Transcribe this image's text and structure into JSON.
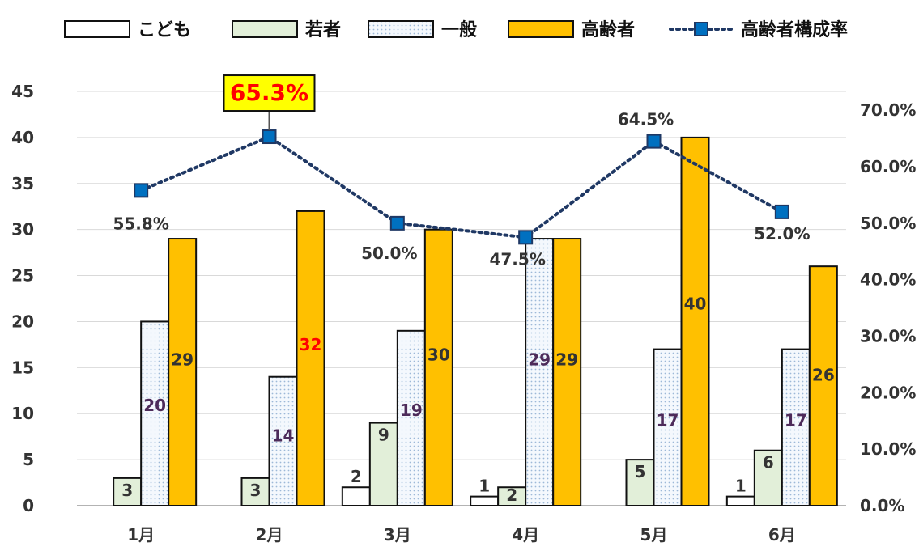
{
  "chart_data": {
    "type": "bar",
    "categories": [
      "1月",
      "2月",
      "3月",
      "4月",
      "5月",
      "6月"
    ],
    "series": [
      {
        "name": "こども",
        "values": [
          0,
          0,
          2,
          1,
          0,
          1
        ],
        "labels": [
          "",
          "",
          "2",
          "1",
          "",
          "1"
        ],
        "color": "#ffffff"
      },
      {
        "name": "若者",
        "values": [
          3,
          3,
          9,
          2,
          5,
          6
        ],
        "labels": [
          "3",
          "3",
          "9",
          "2",
          "5",
          "6"
        ],
        "color": "#e2efd9"
      },
      {
        "name": "一般",
        "values": [
          20,
          14,
          19,
          29,
          17,
          17
        ],
        "labels": [
          "20",
          "14",
          "19",
          "29",
          "17",
          "17"
        ],
        "color": "#f4f8fd"
      },
      {
        "name": "高齢者",
        "values": [
          29,
          32,
          30,
          29,
          40,
          26
        ],
        "labels": [
          "29",
          "32",
          "30",
          "29",
          "40",
          "26"
        ],
        "color": "#ffc000"
      }
    ],
    "line_series": {
      "name": "高齢者構成率",
      "values": [
        55.8,
        65.3,
        50.0,
        47.5,
        64.5,
        52.0
      ],
      "labels": [
        "55.8%",
        "65.3%",
        "50.0%",
        "47.5%",
        "64.5%",
        "52.0%"
      ],
      "color": "#1f3864",
      "marker_color": "#0070c0"
    },
    "highlight": {
      "index": 1,
      "text_color": "#ff0000",
      "box_color": "#ffff00"
    },
    "y_left": {
      "min": 0,
      "max": 45,
      "step": 5,
      "tick_labels": [
        "0",
        "5",
        "10",
        "15",
        "20",
        "25",
        "30",
        "35",
        "40",
        "45"
      ]
    },
    "y_right": {
      "min": 0,
      "max": 70,
      "step": 10,
      "tick_labels": [
        "0.0%",
        "10.0%",
        "20.0%",
        "30.0%",
        "40.0%",
        "50.0%",
        "60.0%",
        "70.0%"
      ]
    },
    "grid": true,
    "legend_position": "top"
  }
}
